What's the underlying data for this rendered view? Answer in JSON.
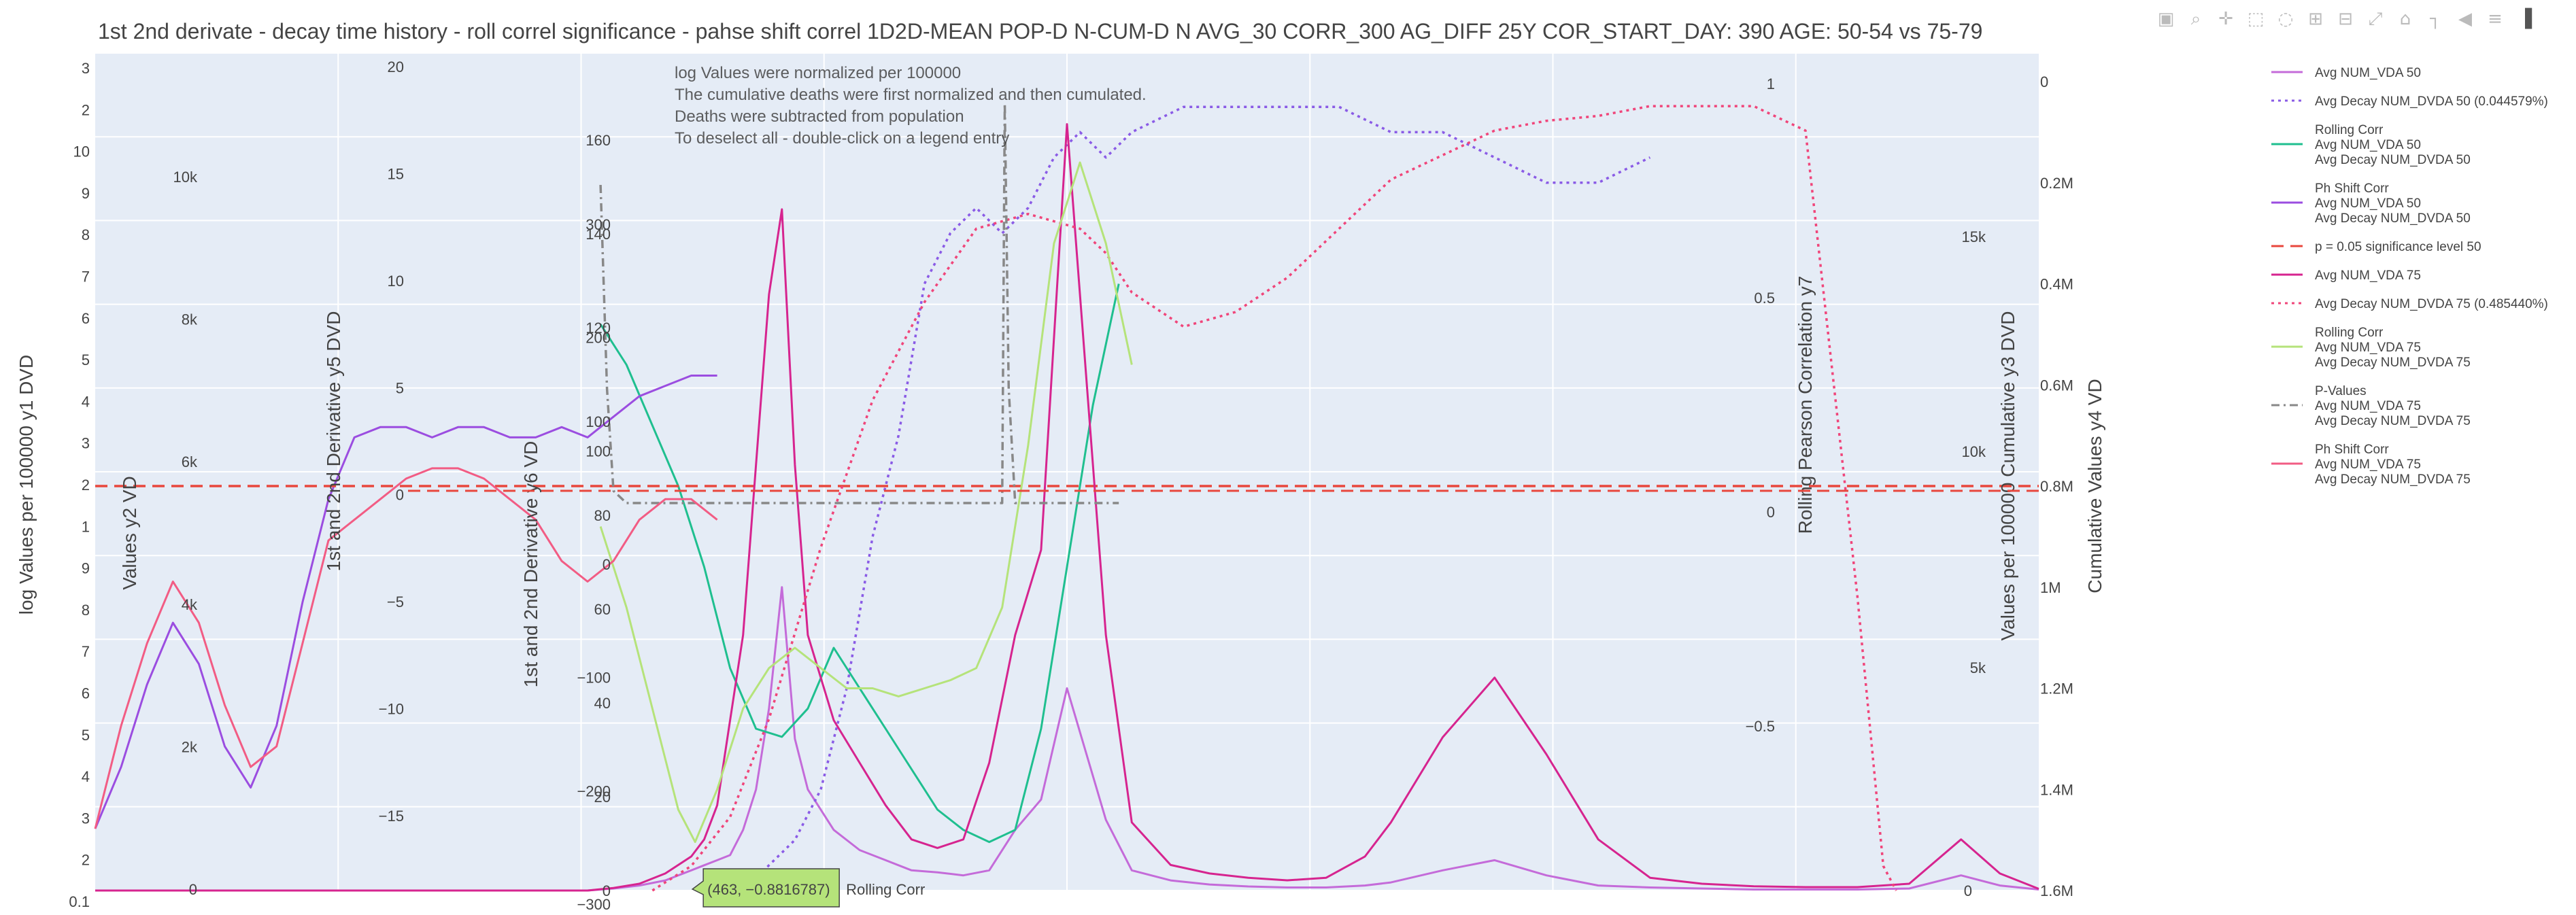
{
  "chart_data": {
    "type": "line",
    "title": "1st 2nd derivate - decay time history - roll correl significance - pahse shift correl 1D2D-MEAN POP-D N-CUM-D N AVG_30 CORR_300 AG_DIFF 25Y COR_START_DAY: 390 AGE: 50-54 vs 75-79",
    "annotations": [
      "log Values were normalized per 100000",
      "The cumulative deaths were first normalized and then cumulated.",
      "Deaths were subtracted from population",
      "To deselect all - double-click on a legend entry"
    ],
    "tooltip": {
      "text": "(463, −0.8816787)",
      "series": "Rolling Corr"
    },
    "axes": {
      "y1": {
        "title": "log Values per 100000 y1 DVD",
        "type": "log",
        "ticks": [
          "0.1",
          "2",
          "3",
          "4",
          "5",
          "6",
          "7",
          "8",
          "9",
          "1",
          "2",
          "3",
          "4",
          "5",
          "6",
          "7",
          "8",
          "9",
          "10",
          "2",
          "3"
        ]
      },
      "y2": {
        "title": "Values y2 VD",
        "ticks": [
          "0",
          "2k",
          "4k",
          "6k",
          "8k",
          "10k"
        ]
      },
      "y5": {
        "title": "1st and 2nd Derivative y5 DVD",
        "ticks": [
          "−15",
          "−10",
          "−5",
          "0",
          "5",
          "10",
          "15",
          "20"
        ]
      },
      "y6": {
        "title": "1st and 2nd Derivative y6 VD",
        "ticks": [
          "−300",
          "−200",
          "−100",
          "0",
          "100",
          "200",
          "300"
        ]
      },
      "y6b": {
        "ticks": [
          "0",
          "20",
          "40",
          "60",
          "80",
          "100",
          "120",
          "140",
          "160"
        ]
      },
      "y7": {
        "title": "Rolling Pearson Correlation y7",
        "ticks": [
          "−0.5",
          "0",
          "0.5",
          "1"
        ]
      },
      "y3": {
        "title": "Values per 100000 Cumulative y3 DVD",
        "ticks": [
          "5k",
          "10k",
          "15k"
        ],
        "zero": "0"
      },
      "y4": {
        "title": "Cumulative Values y4 VD",
        "ticks": [
          "0",
          "0.2M",
          "0.4M",
          "0.6M",
          "0.8M",
          "1M",
          "1.2M",
          "1.4M",
          "1.6M"
        ]
      }
    },
    "legend_position": "right",
    "series": [
      {
        "name": "Avg NUM_VDA 50",
        "color": "#c46bd9",
        "dash": "solid",
        "x": [
          0,
          40,
          80,
          120,
          160,
          200,
          240,
          280,
          320,
          350,
          380,
          400,
          420,
          440,
          460,
          470,
          480,
          490,
          500,
          510,
          520,
          530,
          540,
          550,
          570,
          590,
          610,
          630,
          650,
          670,
          690,
          710,
          730,
          750,
          780,
          800,
          830,
          860,
          890,
          920,
          950,
          980,
          1000,
          1040,
          1080,
          1120,
          1160,
          1200,
          1240,
          1280,
          1320,
          1360,
          1400,
          1440,
          1470,
          1500
        ],
        "y": [
          0,
          0,
          0,
          0,
          0,
          0,
          0,
          0,
          0,
          0,
          0,
          2,
          5,
          10,
          20,
          25,
          30,
          35,
          60,
          100,
          180,
          300,
          150,
          100,
          60,
          40,
          30,
          20,
          18,
          15,
          20,
          60,
          90,
          200,
          70,
          20,
          10,
          6,
          4,
          3,
          3,
          5,
          8,
          20,
          30,
          15,
          5,
          3,
          2,
          1,
          1,
          1,
          2,
          15,
          5,
          1
        ]
      },
      {
        "name": "Avg Decay NUM_DVDA 50 (0.044579%)",
        "color": "#8a5be6",
        "dash": "dot",
        "x": [
          500,
          520,
          540,
          560,
          580,
          600,
          620,
          640,
          660,
          680,
          700,
          720,
          740,
          760,
          780,
          800,
          840,
          880,
          920,
          960,
          1000,
          1040,
          1080,
          1120,
          1160,
          1200
        ],
        "y": [
          0,
          0.05,
          0.1,
          0.2,
          0.4,
          0.7,
          0.9,
          1.2,
          1.3,
          1.35,
          1.3,
          1.35,
          1.45,
          1.5,
          1.45,
          1.5,
          1.55,
          1.55,
          1.55,
          1.55,
          1.5,
          1.5,
          1.45,
          1.4,
          1.4,
          1.45
        ]
      },
      {
        "name": "Rolling Corr Avg NUM_VDA 50 Avg Decay NUM_DVDA 50",
        "color": "#1fbf8f",
        "dash": "solid",
        "x": [
          390,
          410,
          430,
          450,
          470,
          490,
          510,
          530,
          550,
          570,
          590,
          610,
          630,
          650,
          670,
          690,
          710,
          730,
          750,
          770,
          790
        ],
        "y": [
          0.4,
          0.3,
          0.15,
          0,
          -0.2,
          -0.45,
          -0.6,
          -0.62,
          -0.55,
          -0.4,
          -0.5,
          -0.6,
          -0.7,
          -0.8,
          -0.85,
          -0.88,
          -0.85,
          -0.6,
          -0.2,
          0.2,
          0.5
        ]
      },
      {
        "name": "Ph Shift Corr Avg NUM_VDA 50 Avg Decay NUM_DVDA 50",
        "color": "#9b4de0",
        "dash": "solid",
        "x": [
          0,
          20,
          40,
          60,
          80,
          100,
          120,
          140,
          160,
          180,
          200,
          220,
          240,
          260,
          280,
          300,
          320,
          340,
          360,
          380,
          400,
          420,
          440,
          460,
          480
        ],
        "y": [
          -17,
          -14,
          -10,
          -7,
          -9,
          -13,
          -15,
          -12,
          -6,
          -1,
          2,
          2.5,
          2.5,
          2,
          2.5,
          2.5,
          2,
          2,
          2.5,
          2,
          3,
          4,
          4.5,
          5,
          5
        ]
      },
      {
        "name": "p = 0.05 significance level 50",
        "color": "#e8473d",
        "dash": "dash",
        "x": [
          0,
          1500
        ],
        "y": [
          0,
          0
        ]
      },
      {
        "name": "Avg NUM_VDA 75",
        "color": "#d6248f",
        "dash": "solid",
        "x": [
          0,
          40,
          80,
          120,
          160,
          200,
          240,
          280,
          320,
          350,
          380,
          400,
          420,
          440,
          460,
          470,
          480,
          490,
          500,
          510,
          520,
          530,
          540,
          550,
          570,
          590,
          610,
          630,
          650,
          670,
          690,
          710,
          730,
          750,
          780,
          800,
          830,
          860,
          890,
          920,
          950,
          980,
          1000,
          1040,
          1080,
          1120,
          1160,
          1200,
          1240,
          1280,
          1320,
          1360,
          1400,
          1440,
          1470,
          1500
        ],
        "y": [
          0,
          0,
          0,
          0,
          0,
          0,
          0,
          0,
          0,
          0,
          0,
          3,
          8,
          20,
          40,
          60,
          100,
          200,
          300,
          500,
          700,
          800,
          500,
          300,
          200,
          150,
          100,
          60,
          50,
          60,
          150,
          300,
          400,
          900,
          300,
          80,
          30,
          20,
          15,
          12,
          15,
          40,
          80,
          180,
          250,
          160,
          60,
          15,
          8,
          5,
          4,
          4,
          8,
          60,
          20,
          2
        ]
      },
      {
        "name": "Avg Decay NUM_DVDA 75 (0.485440%)",
        "color": "#f0457a",
        "dash": "dot",
        "x": [
          430,
          460,
          490,
          520,
          560,
          600,
          640,
          680,
          720,
          760,
          780,
          800,
          840,
          880,
          920,
          960,
          1000,
          1040,
          1080,
          1120,
          1160,
          1200,
          1240,
          1280,
          1320,
          1360,
          1380,
          1390
        ],
        "y": [
          0,
          0.05,
          0.15,
          0.35,
          0.7,
          1.0,
          1.2,
          1.35,
          1.38,
          1.35,
          1.3,
          1.22,
          1.15,
          1.18,
          1.25,
          1.35,
          1.45,
          1.5,
          1.55,
          1.57,
          1.58,
          1.6,
          1.6,
          1.6,
          1.55,
          0.6,
          0.05,
          0
        ]
      },
      {
        "name": "Rolling Corr Avg NUM_VDA 75 Avg Decay NUM_DVDA 75",
        "color": "#b5e37a",
        "dash": "solid",
        "x": [
          390,
          410,
          430,
          450,
          463,
          480,
          500,
          520,
          540,
          560,
          580,
          600,
          620,
          640,
          660,
          680,
          700,
          720,
          740,
          760,
          780,
          800
        ],
        "y": [
          -0.1,
          -0.3,
          -0.55,
          -0.8,
          -0.88,
          -0.75,
          -0.55,
          -0.45,
          -0.4,
          -0.45,
          -0.5,
          -0.5,
          -0.52,
          -0.5,
          -0.48,
          -0.45,
          -0.3,
          0.1,
          0.6,
          0.8,
          0.6,
          0.3
        ]
      },
      {
        "name": "P-Values Avg NUM_VDA 75 Avg Decay NUM_DVDA 75",
        "color": "#888888",
        "dash": "dashdot",
        "x": [
          390,
          392,
          395,
          400,
          410,
          460,
          520,
          600,
          660,
          700,
          702,
          705,
          710,
          730,
          760,
          790
        ],
        "y": [
          0.8,
          0.6,
          0.3,
          0.05,
          0.02,
          0.02,
          0.02,
          0.02,
          0.02,
          0.02,
          1.0,
          0.3,
          0.02,
          0.02,
          0.02,
          0.02
        ]
      },
      {
        "name": "Ph Shift Corr Avg NUM_VDA 75 Avg Decay NUM_DVDA 75",
        "color": "#f25c84",
        "dash": "solid",
        "x": [
          0,
          20,
          40,
          60,
          80,
          100,
          120,
          140,
          160,
          180,
          200,
          220,
          240,
          260,
          280,
          300,
          320,
          340,
          360,
          380,
          400,
          420,
          440,
          460,
          480
        ],
        "y": [
          -17,
          -12,
          -8,
          -5,
          -7,
          -11,
          -14,
          -13,
          -8,
          -3,
          -2,
          -1,
          0,
          0.5,
          0.5,
          0,
          -1,
          -2,
          -4,
          -5,
          -4,
          -2,
          -1,
          -1,
          -2
        ]
      }
    ]
  },
  "legend": [
    {
      "lines": [
        "Avg NUM_VDA 50"
      ],
      "color": "#c46bd9",
      "dash": "solid"
    },
    {
      "lines": [
        "Avg Decay NUM_DVDA 50 (0.044579%)"
      ],
      "color": "#8a5be6",
      "dash": "dot"
    },
    {
      "lines": [
        "Rolling Corr",
        "Avg NUM_VDA 50",
        "Avg Decay NUM_DVDA 50"
      ],
      "color": "#1fbf8f",
      "dash": "solid"
    },
    {
      "lines": [
        "Ph Shift Corr",
        "Avg NUM_VDA 50",
        "Avg Decay NUM_DVDA 50"
      ],
      "color": "#9b4de0",
      "dash": "solid"
    },
    {
      "lines": [
        "p = 0.05 significance level 50"
      ],
      "color": "#e8473d",
      "dash": "dash"
    },
    {
      "lines": [
        "Avg NUM_VDA 75"
      ],
      "color": "#d6248f",
      "dash": "solid"
    },
    {
      "lines": [
        "Avg Decay NUM_DVDA 75 (0.485440%)"
      ],
      "color": "#f0457a",
      "dash": "dot"
    },
    {
      "lines": [
        "Rolling Corr",
        "Avg NUM_VDA 75",
        "Avg Decay NUM_DVDA 75"
      ],
      "color": "#b5e37a",
      "dash": "solid"
    },
    {
      "lines": [
        "P-Values",
        "Avg NUM_VDA 75",
        "Avg Decay NUM_DVDA 75"
      ],
      "color": "#888888",
      "dash": "dashdot"
    },
    {
      "lines": [
        "Ph Shift Corr",
        "Avg NUM_VDA 75",
        "Avg Decay NUM_DVDA 75"
      ],
      "color": "#f25c84",
      "dash": "solid"
    }
  ],
  "modebar": [
    {
      "icon": "camera-icon",
      "glyph": "▣"
    },
    {
      "icon": "zoom-icon",
      "glyph": "⌕"
    },
    {
      "icon": "pan-icon",
      "glyph": "✛"
    },
    {
      "icon": "box-select-icon",
      "glyph": "⬚"
    },
    {
      "icon": "lasso-select-icon",
      "glyph": "◌"
    },
    {
      "icon": "zoom-in-icon",
      "glyph": "⊞"
    },
    {
      "icon": "zoom-out-icon",
      "glyph": "⊟"
    },
    {
      "icon": "autoscale-icon",
      "glyph": "⤢"
    },
    {
      "icon": "reset-axes-icon",
      "glyph": "⌂"
    },
    {
      "icon": "spike-lines-icon",
      "glyph": "┐"
    },
    {
      "icon": "hover-closest-icon",
      "glyph": "◀"
    },
    {
      "icon": "hover-compare-icon",
      "glyph": "≡"
    },
    {
      "icon": "plotly-logo-icon",
      "glyph": "▐"
    }
  ]
}
